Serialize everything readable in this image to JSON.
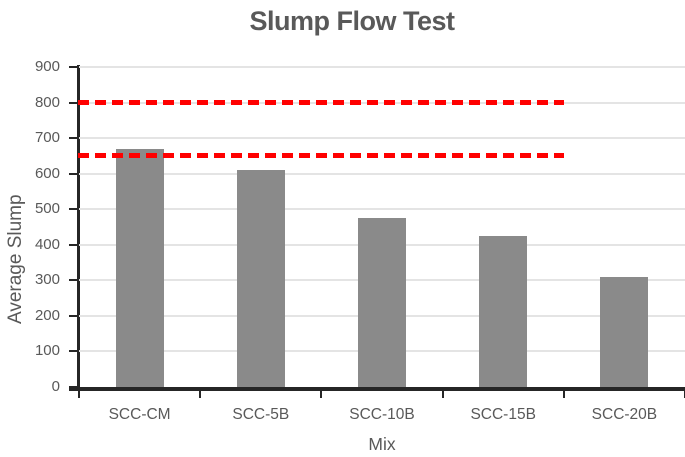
{
  "chart_data": {
    "type": "bar",
    "title": "Slump Flow Test",
    "xlabel": "Mix",
    "ylabel": "Average Slump",
    "categories": [
      "SCC-CM",
      "SCC-5B",
      "SCC-10B",
      "SCC-15B",
      "SCC-20B"
    ],
    "values": [
      670,
      610,
      475,
      425,
      310
    ],
    "ylim": [
      0,
      900
    ],
    "ytick_step": 100,
    "grid": true,
    "legend": "none",
    "bar_color": "#8a8a8a",
    "axis_color": "#262626",
    "text_color": "#595959",
    "reference_lines": [
      {
        "value": 800,
        "color": "#ff0000",
        "style": "dashed"
      },
      {
        "value": 650,
        "color": "#ff0000",
        "style": "dashed"
      }
    ]
  }
}
